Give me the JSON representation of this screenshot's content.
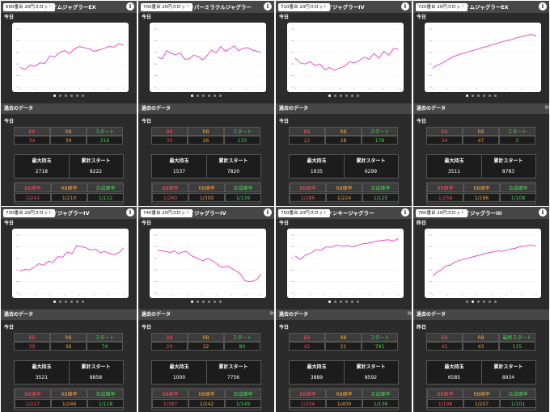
{
  "page": {
    "past_data_label": "過去のデータ",
    "col_bb": "BB",
    "col_rb": "RB",
    "col_start": "スタート",
    "col_max": "最大持玉",
    "col_total_start": "累計スタート",
    "col_bb_prob": "BB確率",
    "col_rb_prob": "RB確率",
    "col_combined": "合成確率",
    "info_glyph": "i"
  },
  "panels": [
    {
      "machine": "690番台 20円スロット",
      "title": "アイムジャグラーEX",
      "day": "今日",
      "table_day": "今日",
      "start_label": "スタート",
      "bb": "34",
      "rb": "39",
      "start": "216",
      "max": "2718",
      "total": "8222",
      "bb_prob": "1/241",
      "rb_prob": "1/210",
      "combined": "1/112",
      "page": 0,
      "clip": ""
    },
    {
      "machine": "700番台 20円スロット",
      "title": "スーパーミラクルジャグラー",
      "day": "今日",
      "table_day": "今日",
      "start_label": "スタート",
      "bb": "30",
      "rb": "26",
      "start": "133",
      "max": "1537",
      "total": "7820",
      "bb_prob": "1/260",
      "rb_prob": "1/300",
      "combined": "1/139",
      "page": 0,
      "clip": ""
    },
    {
      "machine": "710番台 20円スロット",
      "title": "マイジャグラーIV",
      "day": "今日",
      "table_day": "今日",
      "start_label": "スタート",
      "bb": "22",
      "rb": "28",
      "start": "178",
      "max": "1935",
      "total": "6299",
      "bb_prob": "1/286",
      "rb_prob": "1/224",
      "combined": "1/125",
      "page": 0,
      "clip": ""
    },
    {
      "machine": "720番台 20円スロット",
      "title": "アイムジャグラーEX",
      "day": "今日",
      "table_day": "今日",
      "start_label": "スタート",
      "bb": "34",
      "rb": "47",
      "start": "2",
      "max": "3511",
      "total": "8783",
      "bb_prob": "1/258",
      "rb_prob": "1/186",
      "combined": "1/108",
      "page": 0,
      "clip": "昨"
    },
    {
      "machine": "730番台 20円スロット",
      "title": "マイジャグラーIV",
      "day": "今日",
      "table_day": "今日",
      "start_label": "スタート",
      "bb": "39",
      "rb": "36",
      "start": "74",
      "max": "3521",
      "total": "8858",
      "bb_prob": "1/227",
      "rb_prob": "1/246",
      "combined": "1/118",
      "page": 0,
      "clip": ""
    },
    {
      "machine": "740番台 20円スロット",
      "title": "マイジャグラーIV",
      "day": "今日",
      "table_day": "今日",
      "start_label": "スタート",
      "bb": "20",
      "rb": "32",
      "start": "80",
      "max": "1000",
      "total": "7756",
      "bb_prob": "1/387",
      "rb_prob": "1/242",
      "combined": "1/149",
      "page": 0,
      "clip": "昨"
    },
    {
      "machine": "750番台 20円スロット",
      "title": "ファンキージャグラー",
      "day": "今日",
      "table_day": "今日",
      "start_label": "スタート",
      "bb": "42",
      "rb": "21",
      "start": "791",
      "max": "3889",
      "total": "8592",
      "bb_prob": "1/204",
      "rb_prob": "1/409",
      "combined": "1/136",
      "page": 0,
      "clip": "昨"
    },
    {
      "machine": "760番台 20円スロット",
      "title": "マイジャグラーIII",
      "day": "昨日",
      "table_day": "昨日",
      "start_label": "最終スタート",
      "bb": "45",
      "rb": "43",
      "start": "115",
      "max": "6585",
      "total": "8934",
      "bb_prob": "1/198",
      "rb_prob": "1/207",
      "combined": "1/101",
      "page": 1,
      "clip": ""
    }
  ],
  "chart_data": [
    {
      "type": "line",
      "title": "",
      "xlabel": "",
      "ylabel": "",
      "ylim": [
        0,
        100
      ],
      "series": [
        {
          "values": [
            34,
            31,
            38,
            36,
            42,
            41,
            54,
            52,
            60,
            63,
            58,
            66,
            70,
            68,
            66,
            62,
            64,
            67,
            70,
            69,
            75,
            72
          ]
        }
      ]
    },
    {
      "type": "line",
      "title": "",
      "xlabel": "",
      "ylabel": "",
      "ylim": [
        0,
        100
      ],
      "series": [
        {
          "values": [
            52,
            49,
            63,
            58,
            56,
            59,
            48,
            49,
            55,
            53,
            47,
            55,
            64,
            59,
            70,
            62,
            66,
            71,
            63,
            67,
            68,
            64,
            62,
            60
          ]
        }
      ]
    },
    {
      "type": "line",
      "title": "",
      "xlabel": "",
      "ylabel": "",
      "ylim": [
        0,
        100
      ],
      "series": [
        {
          "values": [
            50,
            42,
            40,
            44,
            37,
            40,
            30,
            34,
            29,
            33,
            36,
            44,
            42,
            46,
            52,
            48,
            58,
            50,
            62,
            55,
            67,
            65
          ]
        }
      ]
    },
    {
      "type": "line",
      "title": "",
      "xlabel": "",
      "ylabel": "",
      "ylim": [
        0,
        100
      ],
      "series": [
        {
          "values": [
            33,
            38,
            42,
            47,
            52,
            55,
            58,
            60,
            63,
            65,
            68,
            70,
            73,
            75,
            78,
            80,
            82,
            85,
            87,
            89,
            91,
            88
          ]
        }
      ]
    },
    {
      "type": "line",
      "title": "",
      "xlabel": "",
      "ylabel": "",
      "ylim": [
        0,
        100
      ],
      "series": [
        {
          "values": [
            38,
            41,
            40,
            45,
            51,
            48,
            55,
            53,
            63,
            62,
            71,
            68,
            82,
            80,
            78,
            74,
            76,
            70,
            72,
            68,
            66,
            70,
            78
          ]
        }
      ]
    },
    {
      "type": "line",
      "title": "",
      "xlabel": "",
      "ylabel": "",
      "ylim": [
        0,
        100
      ],
      "series": [
        {
          "values": [
            74,
            73,
            72,
            70,
            73,
            68,
            71,
            72,
            65,
            62,
            58,
            56,
            60,
            57,
            52,
            46,
            45,
            47,
            42,
            38,
            33,
            22,
            20,
            21,
            24,
            33
          ]
        }
      ]
    },
    {
      "type": "line",
      "title": "",
      "xlabel": "",
      "ylabel": "",
      "ylim": [
        0,
        100
      ],
      "series": [
        {
          "values": [
            64,
            58,
            66,
            69,
            75,
            74,
            80,
            79,
            83,
            81,
            82,
            80,
            82,
            85,
            86,
            88,
            90,
            91,
            92,
            90,
            94
          ]
        }
      ]
    },
    {
      "type": "line",
      "title": "",
      "xlabel": "",
      "ylabel": "",
      "ylim": [
        0,
        100
      ],
      "series": [
        {
          "values": [
            30,
            36,
            40,
            47,
            48,
            53,
            56,
            58,
            60,
            62,
            64,
            66,
            68,
            70,
            71,
            73,
            72,
            74,
            76,
            77,
            80,
            81,
            82,
            83,
            81
          ]
        }
      ]
    }
  ]
}
